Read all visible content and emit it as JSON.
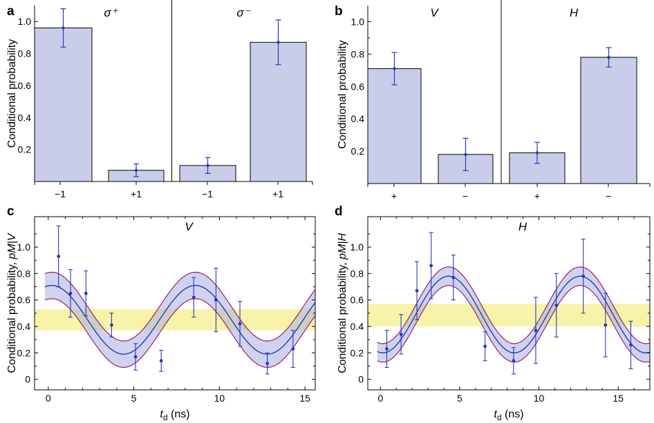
{
  "chart_data": [
    {
      "panel": "a",
      "type": "bar",
      "ylabel": "Conditional probability",
      "ylim": [
        0,
        1.1
      ],
      "yticks": [
        "0.2",
        "0.4",
        "0.6",
        "0.8",
        "1.0"
      ],
      "group_titles": [
        "σ⁺",
        "σ⁻"
      ],
      "categories": [
        "−1",
        "+1",
        "−1",
        "+1"
      ],
      "values": [
        0.96,
        0.07,
        0.1,
        0.87
      ],
      "errors": [
        0.12,
        0.04,
        0.05,
        0.14
      ]
    },
    {
      "panel": "b",
      "type": "bar",
      "ylabel": "Conditional probability",
      "ylim": [
        0,
        1.1
      ],
      "yticks": [
        "0.2",
        "0.4",
        "0.6",
        "0.8",
        "1.0"
      ],
      "group_titles": [
        "V",
        "H"
      ],
      "categories": [
        "+",
        "−",
        "+",
        "−"
      ],
      "values": [
        0.71,
        0.18,
        0.19,
        0.78
      ],
      "errors": [
        0.1,
        0.1,
        0.065,
        0.06
      ]
    },
    {
      "panel": "c",
      "type": "scatter",
      "title": "V",
      "ylabel_main": "Conditional probability, ",
      "ylabel_italic": "pM|V",
      "xlabel_symbol": "t",
      "xlabel_sub": "d",
      "xlabel_unit": " (ns)",
      "xlim": [
        -0.8,
        15.6
      ],
      "ylim": [
        -0.08,
        1.23
      ],
      "xticks": [
        "0",
        "5",
        "10",
        "15"
      ],
      "yticks": [
        "0",
        "0.2",
        "0.4",
        "0.6",
        "0.8",
        "1.0"
      ],
      "points": {
        "x": [
          0.6,
          1.3,
          2.2,
          3.7,
          5.1,
          6.6,
          8.5,
          9.8,
          11.2,
          12.8,
          14.3
        ],
        "y": [
          0.93,
          0.65,
          0.65,
          0.41,
          0.17,
          0.14,
          0.62,
          0.6,
          0.42,
          0.12,
          0.23
        ],
        "err": [
          0.23,
          0.18,
          0.17,
          0.09,
          0.1,
          0.08,
          0.15,
          0.24,
          0.17,
          0.08,
          0.14
        ]
      },
      "band": [
        0.37,
        0.53
      ],
      "fit": {
        "offset": 0.45,
        "amplitude": 0.26,
        "period": 8.4,
        "peak": 0.2,
        "envelope": 0.1
      }
    },
    {
      "panel": "d",
      "type": "scatter",
      "title": "H",
      "ylabel_main": "Conditional probability, ",
      "ylabel_italic": "pM|H",
      "xlabel_symbol": "t",
      "xlabel_sub": "d",
      "xlabel_unit": " (ns)",
      "xlim": [
        -0.8,
        17.0
      ],
      "ylim": [
        -0.08,
        1.23
      ],
      "xticks": [
        "0",
        "5",
        "10",
        "15"
      ],
      "yticks": [
        "0",
        "0.2",
        "0.4",
        "0.6",
        "0.8",
        "1.0"
      ],
      "points": {
        "x": [
          0.4,
          1.3,
          2.3,
          3.2,
          4.6,
          6.6,
          8.4,
          9.8,
          11.1,
          12.8,
          14.2,
          15.8
        ],
        "y": [
          0.23,
          0.34,
          0.67,
          0.86,
          0.77,
          0.25,
          0.14,
          0.37,
          0.56,
          0.78,
          0.41,
          0.26
        ],
        "err": [
          0.14,
          0.15,
          0.22,
          0.25,
          0.17,
          0.11,
          0.1,
          0.25,
          0.24,
          0.28,
          0.24,
          0.18
        ]
      },
      "band": [
        0.4,
        0.57
      ],
      "fit": {
        "offset": 0.49,
        "amplitude": 0.29,
        "period": 8.3,
        "peak": 4.3,
        "envelope": 0.07
      }
    }
  ]
}
